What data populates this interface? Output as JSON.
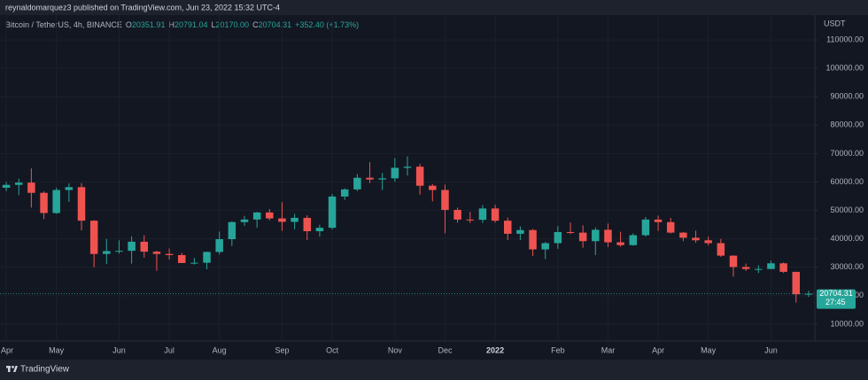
{
  "header": {
    "text": "reynaldomarquez3 published on TradingView.com, Jun 23, 2022 15:32 UTC-4"
  },
  "footer": {
    "brand": "TradingView"
  },
  "chart_data": {
    "type": "candlestick",
    "title": "Bitcoin / TetherUS, 4h, BINANCE",
    "ohlc_legend": [
      {
        "label": "O",
        "value": "20351.91"
      },
      {
        "label": "H",
        "value": "20791.04"
      },
      {
        "label": "L",
        "value": "20170.00"
      },
      {
        "label": "C",
        "value": "20704.31"
      }
    ],
    "change": "+352.40 (+1.73%)",
    "y_unit": "USDT",
    "countdown": "27:45",
    "up_color": "#26a69a",
    "down_color": "#ef5350",
    "grid": true,
    "categories": [
      "Apr",
      null,
      null,
      null,
      "May",
      null,
      null,
      null,
      null,
      "Jun",
      null,
      null,
      null,
      "Jul",
      null,
      null,
      null,
      "Aug",
      null,
      null,
      null,
      null,
      "Sep",
      null,
      null,
      null,
      "Oct",
      null,
      null,
      null,
      null,
      "Nov",
      null,
      null,
      null,
      "Dec",
      null,
      null,
      null,
      "2022",
      null,
      null,
      null,
      null,
      "Feb",
      null,
      null,
      null,
      "Mar",
      null,
      null,
      null,
      "Apr",
      null,
      null,
      null,
      "May",
      null,
      null,
      null,
      null,
      "Jun",
      null,
      null,
      null
    ],
    "open": [
      58000,
      59000,
      59800,
      56200,
      49100,
      57200,
      58200,
      46400,
      34700,
      35700,
      35800,
      39000,
      35500,
      34700,
      34300,
      31500,
      31600,
      35400,
      39900,
      45900,
      46800,
      49300,
      47200,
      46000,
      47400,
      42700,
      43900,
      54900,
      57400,
      61500,
      60900,
      61300,
      65000,
      65400,
      58700,
      57200,
      50200,
      46800,
      46700,
      50700,
      46400,
      41800,
      43100,
      36300,
      38500,
      42400,
      42200,
      39200,
      43200,
      38800,
      37800,
      41300,
      46800,
      45900,
      42200,
      40400,
      39500,
      38500,
      34100,
      30100,
      29400,
      29400,
      31400,
      28400,
      20500
    ],
    "high": [
      60000,
      61200,
      64800,
      56700,
      58000,
      59500,
      59600,
      46600,
      40000,
      39500,
      40900,
      41300,
      35800,
      36600,
      35100,
      33300,
      35500,
      42600,
      46200,
      48100,
      49500,
      50500,
      52900,
      48800,
      48300,
      45000,
      55800,
      57800,
      62800,
      67000,
      63200,
      68400,
      69000,
      66400,
      59300,
      59100,
      51000,
      49500,
      51900,
      52000,
      47500,
      44400,
      43500,
      38900,
      44500,
      45800,
      44800,
      44000,
      45400,
      42500,
      41900,
      47700,
      48200,
      47400,
      42400,
      42900,
      40800,
      40000,
      34200,
      31300,
      30700,
      32400,
      31700,
      28400,
      21700
    ],
    "low": [
      56800,
      55400,
      51000,
      47000,
      48800,
      53000,
      43000,
      30000,
      31100,
      34800,
      31300,
      33400,
      28800,
      32700,
      32100,
      31000,
      29300,
      34500,
      37500,
      44600,
      43900,
      46500,
      42800,
      43400,
      39600,
      40800,
      43300,
      53700,
      56800,
      59600,
      57200,
      60100,
      62300,
      55600,
      53200,
      42000,
      45700,
      45600,
      45600,
      45700,
      39600,
      39600,
      34000,
      32900,
      36500,
      41700,
      36900,
      34300,
      37100,
      37200,
      37600,
      40800,
      42800,
      41900,
      39200,
      38600,
      37700,
      33700,
      26700,
      28700,
      28000,
      29400,
      28000,
      17600,
      19600
    ],
    "close": [
      59000,
      59800,
      56200,
      49100,
      57200,
      58200,
      46400,
      34700,
      35700,
      35800,
      39000,
      35500,
      34700,
      34300,
      31500,
      31600,
      35400,
      39900,
      45900,
      46800,
      49300,
      47200,
      46000,
      47400,
      42700,
      43900,
      54900,
      57400,
      61500,
      60900,
      61300,
      65000,
      65400,
      58700,
      57200,
      50200,
      46800,
      46700,
      50700,
      46400,
      41800,
      43100,
      36300,
      38500,
      42400,
      42200,
      39200,
      43200,
      38800,
      37800,
      41300,
      46800,
      45900,
      42200,
      40400,
      39500,
      38500,
      34100,
      30100,
      29400,
      29400,
      31400,
      28400,
      20500,
      20704.31
    ],
    "ylim": [
      4060,
      118750
    ],
    "yticks": [
      {
        "value": 10000,
        "label": "10000.00"
      },
      {
        "value": 20000,
        "label": "20000.00"
      },
      {
        "value": 30000,
        "label": "30000.00"
      },
      {
        "value": 40000,
        "label": "40000.00"
      },
      {
        "value": 50000,
        "label": "50000.00"
      },
      {
        "value": 60000,
        "label": "60000.00"
      },
      {
        "value": 70000,
        "label": "70000.00"
      },
      {
        "value": 80000,
        "label": "80000.00"
      },
      {
        "value": 90000,
        "label": "90000.00"
      },
      {
        "value": 100000,
        "label": "100000.00"
      },
      {
        "value": 110000,
        "label": "110000.00"
      }
    ]
  }
}
